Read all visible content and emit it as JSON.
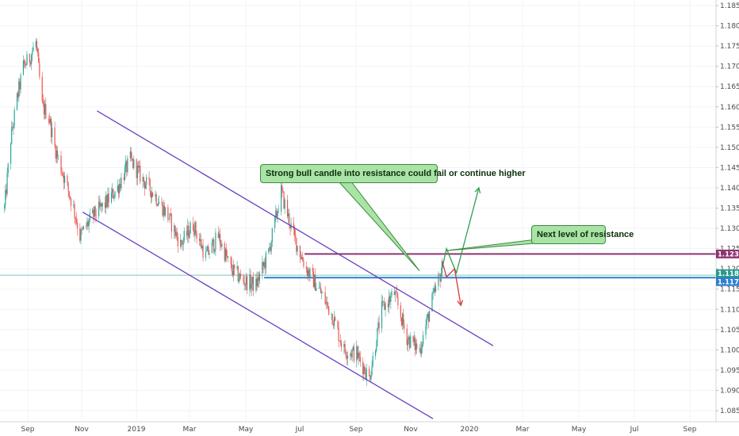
{
  "chart_data": {
    "type": "candlestick",
    "title": "",
    "xlabel": "",
    "ylabel": "",
    "grid": true,
    "x_tick_labels": [
      "Sep",
      "Nov",
      "2019",
      "Mar",
      "May",
      "Jul",
      "Sep",
      "Nov",
      "2020",
      "Mar",
      "May",
      "Jul",
      "Sep"
    ],
    "y_tick_labels": [
      "1.18500",
      "1.18000",
      "1.17500",
      "1.17000",
      "1.16500",
      "1.16000",
      "1.15500",
      "1.15000",
      "1.14500",
      "1.14000",
      "1.13500",
      "1.13000",
      "1.12500",
      "1.12000",
      "1.11500",
      "1.11000",
      "1.10500",
      "1.10000",
      "1.09500",
      "1.09000",
      "1.08500"
    ],
    "ylim": [
      1.0835,
      1.1875
    ],
    "price_path": [
      [
        "2018-08-20",
        1.135
      ],
      [
        "2018-08-27",
        1.152
      ],
      [
        "2018-09-03",
        1.162
      ],
      [
        "2018-09-10",
        1.17
      ],
      [
        "2018-09-17",
        1.172
      ],
      [
        "2018-09-24",
        1.176
      ],
      [
        "2018-10-01",
        1.16
      ],
      [
        "2018-10-08",
        1.158
      ],
      [
        "2018-10-15",
        1.15
      ],
      [
        "2018-10-22",
        1.145
      ],
      [
        "2018-11-05",
        1.135
      ],
      [
        "2018-11-12",
        1.128
      ],
      [
        "2018-11-26",
        1.133
      ],
      [
        "2018-12-10",
        1.136
      ],
      [
        "2018-12-24",
        1.14
      ],
      [
        "2019-01-07",
        1.147
      ],
      [
        "2019-01-21",
        1.142
      ],
      [
        "2019-02-04",
        1.138
      ],
      [
        "2019-02-18",
        1.133
      ],
      [
        "2019-03-04",
        1.126
      ],
      [
        "2019-03-18",
        1.131
      ],
      [
        "2019-04-01",
        1.123
      ],
      [
        "2019-04-15",
        1.128
      ],
      [
        "2019-04-29",
        1.12
      ],
      [
        "2019-05-13",
        1.117
      ],
      [
        "2019-05-27",
        1.116
      ],
      [
        "2019-06-10",
        1.124
      ],
      [
        "2019-06-24",
        1.139
      ],
      [
        "2019-07-08",
        1.128
      ],
      [
        "2019-07-22",
        1.12
      ],
      [
        "2019-08-05",
        1.115
      ],
      [
        "2019-08-19",
        1.109
      ],
      [
        "2019-09-02",
        1.1
      ],
      [
        "2019-09-16",
        1.099
      ],
      [
        "2019-09-30",
        1.093
      ],
      [
        "2019-10-14",
        1.11
      ],
      [
        "2019-10-28",
        1.114
      ],
      [
        "2019-11-11",
        1.103
      ],
      [
        "2019-11-25",
        1.1
      ],
      [
        "2019-12-09",
        1.112
      ],
      [
        "2019-12-20",
        1.12
      ]
    ],
    "x_range": [
      "2018-08-15",
      "2020-10-20"
    ],
    "price_label_colors": {
      "1.12367": "#8e3470",
      "1.11843": "#2a9a8f",
      "1.11782": "#2f7fd1"
    },
    "levels": [
      {
        "label": "1.12367",
        "price": 1.12367,
        "color": "#8e3470",
        "from": "2019-07-20"
      },
      {
        "label": "1.11843",
        "price": 1.11843,
        "color": "#79c9c0",
        "from": "2018-08-15"
      },
      {
        "label": "1.11782",
        "price": 1.11782,
        "color": "#2f7fd1",
        "from": "2019-06-05"
      }
    ],
    "channel_lines": [
      {
        "from": [
          "2018-12-01",
          1.159
        ],
        "to": [
          "2020-02-15",
          1.101
        ],
        "color": "#6a3fbf"
      },
      {
        "from": [
          "2018-11-15",
          1.134
        ],
        "to": [
          "2019-12-10",
          1.083
        ],
        "color": "#6a3fbf"
      }
    ],
    "arrows": [
      {
        "color": "#2f9e4f",
        "points": [
          [
            "2019-12-20",
            1.12
          ],
          [
            "2019-12-25",
            1.125
          ],
          [
            "2020-01-05",
            1.119
          ],
          [
            "2020-01-30",
            1.14
          ]
        ]
      },
      {
        "color": "#d33a3a",
        "points": [
          [
            "2019-12-20",
            1.122
          ],
          [
            "2019-12-25",
            1.118
          ],
          [
            "2020-01-03",
            1.12
          ],
          [
            "2020-01-10",
            1.111
          ]
        ]
      }
    ],
    "annotations": [
      {
        "text": "Strong bull candle into resistance could fail or continue higher",
        "anchor": [
          "2019-11-25",
          1.1195
        ]
      },
      {
        "text": "Next level of resistance",
        "anchor": [
          "2019-12-25",
          1.1245
        ]
      }
    ],
    "colors": {
      "up": "#26a69a",
      "down": "#ef5350",
      "grid": "#f0f3fa"
    }
  }
}
